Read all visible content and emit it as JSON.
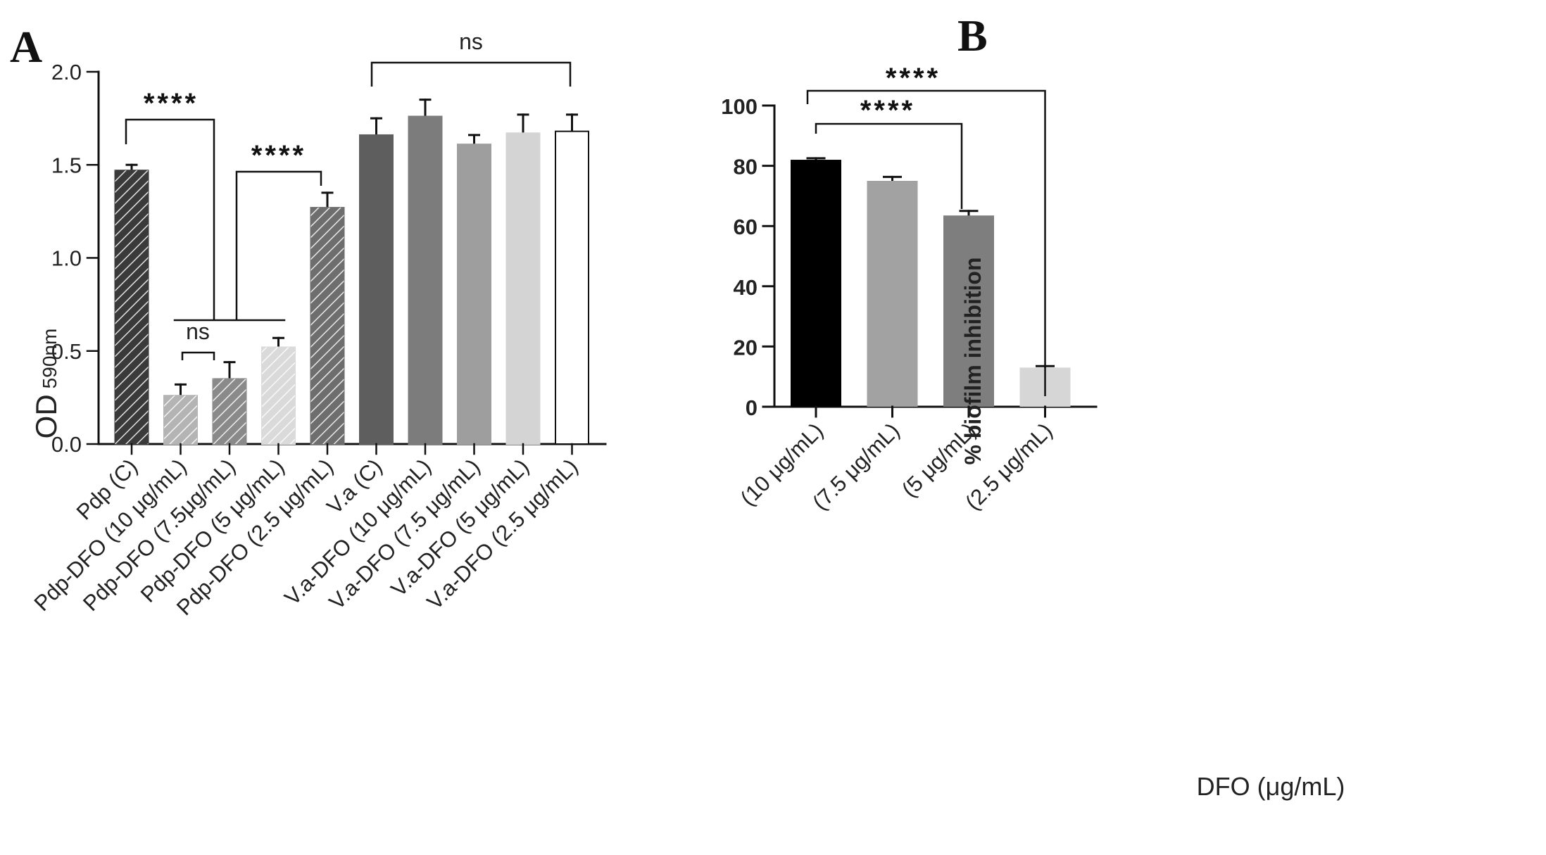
{
  "chart_data": [
    {
      "panel": "A",
      "type": "bar",
      "title": "",
      "xlabel": "",
      "ylabel": "OD",
      "ylabel_sub": "590nm",
      "ylim": [
        0.0,
        2.0
      ],
      "yticks": [
        "0.0",
        "0.5",
        "1.0",
        "1.5",
        "2.0"
      ],
      "categories": [
        "Pdp (C)",
        "Pdp-DFO (10 μg/mL)",
        "Pdp-DFO (7.5μg/mL)",
        "Pdp-DFO (5 μg/mL)",
        "Pdp-DFO (2.5 μg/mL)",
        "V.a (C)",
        "V.a-DFO (10 μg/mL)",
        "V.a-DFO (7.5 μg/mL)",
        "V.a-DFO (5 μg/mL)",
        "V.a-DFO (2.5 μg/mL)"
      ],
      "values": [
        1.47,
        0.26,
        0.35,
        0.52,
        1.27,
        1.66,
        1.76,
        1.61,
        1.67,
        1.68
      ],
      "errors": [
        0.03,
        0.06,
        0.09,
        0.05,
        0.08,
        0.09,
        0.09,
        0.05,
        0.1,
        0.09
      ],
      "colors": [
        "#3a3a3a",
        "#b4b4b4",
        "#8a8a8a",
        "#dadada",
        "#6e6e6e",
        "#5e5e5e",
        "#7c7c7c",
        "#9e9e9e",
        "#d4d4d4",
        "#ffffff"
      ],
      "hatched": [
        true,
        true,
        true,
        true,
        true,
        false,
        false,
        false,
        false,
        false
      ],
      "annotations": [
        {
          "label": "****",
          "from": 0,
          "to": 2
        },
        {
          "label": "****",
          "from": 2.5,
          "to": 4
        },
        {
          "label": "ns",
          "from": 1,
          "to": 2
        },
        {
          "label": "ns",
          "from": 5,
          "to": 9
        }
      ]
    },
    {
      "panel": "B",
      "type": "bar",
      "title": "",
      "xlabel": "DFO (μg/mL)",
      "ylabel": "% biofilm inhibition",
      "ylim": [
        0,
        100
      ],
      "yticks": [
        "0",
        "20",
        "40",
        "60",
        "80",
        "100"
      ],
      "categories": [
        "(10 μg/mL)",
        "(7.5 μg/mL)",
        "(5 μg/mL)",
        "(2.5 μg/mL)"
      ],
      "values": [
        82,
        75,
        63.5,
        13
      ],
      "errors": [
        0.5,
        1.3,
        1.5,
        0.5
      ],
      "colors": [
        "#000000",
        "#a2a2a2",
        "#7e7e7e",
        "#d6d6d6"
      ],
      "annotations": [
        {
          "label": "****",
          "from": 0,
          "to": 3
        },
        {
          "label": "****",
          "from": 0,
          "to": 2
        }
      ]
    }
  ]
}
